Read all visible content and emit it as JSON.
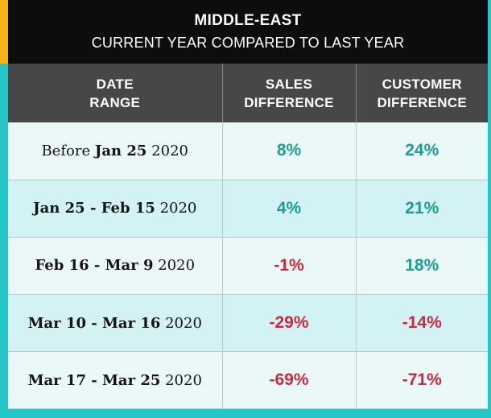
{
  "colors": {
    "accent": "#f5b31b",
    "background": "#27c6c6",
    "positive": "#1f9a96",
    "negative": "#cf2740",
    "header_bg": "#474747",
    "title_bg": "#0d0d0d"
  },
  "chart_data": {
    "type": "table",
    "title": "MIDDLE-EAST",
    "subtitle": "CURRENT YEAR COMPARED TO LAST YEAR",
    "columns": [
      [
        "DATE",
        "RANGE"
      ],
      [
        "SALES",
        "DIFFERENCE"
      ],
      [
        "CUSTOMER",
        "DIFFERENCE"
      ]
    ],
    "rows": [
      {
        "range_prefix": "Before ",
        "range_bold": "Jan 25",
        "range_year": " 2020",
        "sales": "8%",
        "customers": "24%"
      },
      {
        "range_prefix": "",
        "range_bold": "Jan 25 - Feb 15",
        "range_year": " 2020",
        "sales": "4%",
        "customers": "21%"
      },
      {
        "range_prefix": "",
        "range_bold": "Feb 16 - Mar 9",
        "range_year": " 2020",
        "sales": "-1%",
        "customers": "18%"
      },
      {
        "range_prefix": "",
        "range_bold": "Mar 10 - Mar 16",
        "range_year": " 2020",
        "sales": "-29%",
        "customers": "-14%"
      },
      {
        "range_prefix": "",
        "range_bold": "Mar 17 - Mar 25",
        "range_year": " 2020",
        "sales": "-69%",
        "customers": "-71%"
      }
    ]
  }
}
